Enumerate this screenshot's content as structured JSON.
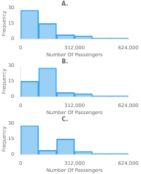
{
  "chart_data": [
    {
      "type": "histogram",
      "title": "A.",
      "bins": [
        0,
        104000,
        208000,
        312000,
        416000,
        520000,
        624000
      ],
      "values": [
        28,
        15,
        4,
        3,
        1,
        1
      ],
      "xlabel": "Number Of Passengers",
      "ylabel": "Frequency",
      "xlim": [
        0,
        624000
      ],
      "xticks": [
        0,
        {
          "value": 312000,
          "label": "312,000"
        },
        {
          "value": 624000,
          "label": "624,000"
        }
      ],
      "ylim": [
        0,
        30
      ],
      "yticks": [
        0,
        15,
        30
      ],
      "grid": false
    },
    {
      "type": "histogram",
      "title": "B.",
      "bins": [
        0,
        104000,
        208000,
        312000,
        416000,
        520000,
        624000
      ],
      "values": [
        15,
        28,
        4,
        3,
        1,
        1
      ],
      "xlabel": "Number Of Passengers",
      "ylabel": "Frequency",
      "xlim": [
        0,
        624000
      ],
      "xticks": [
        0,
        {
          "value": 312000,
          "label": "312,000"
        },
        {
          "value": 624000,
          "label": "624,000"
        }
      ],
      "ylim": [
        0,
        30
      ],
      "yticks": [
        0,
        15,
        30
      ],
      "grid": false
    },
    {
      "type": "histogram",
      "title": "C.",
      "bins": [
        0,
        104000,
        208000,
        312000,
        416000,
        520000,
        624000
      ],
      "values": [
        28,
        4,
        15,
        3,
        1,
        1
      ],
      "xlabel": "Number Of Passengers",
      "ylabel": "Frequency",
      "xlim": [
        0,
        624000
      ],
      "xticks": [
        0,
        {
          "value": 312000,
          "label": "312,000"
        },
        {
          "value": 624000,
          "label": "624,000"
        }
      ],
      "ylim": [
        0,
        30
      ],
      "yticks": [
        0,
        15,
        30
      ],
      "grid": false
    }
  ]
}
